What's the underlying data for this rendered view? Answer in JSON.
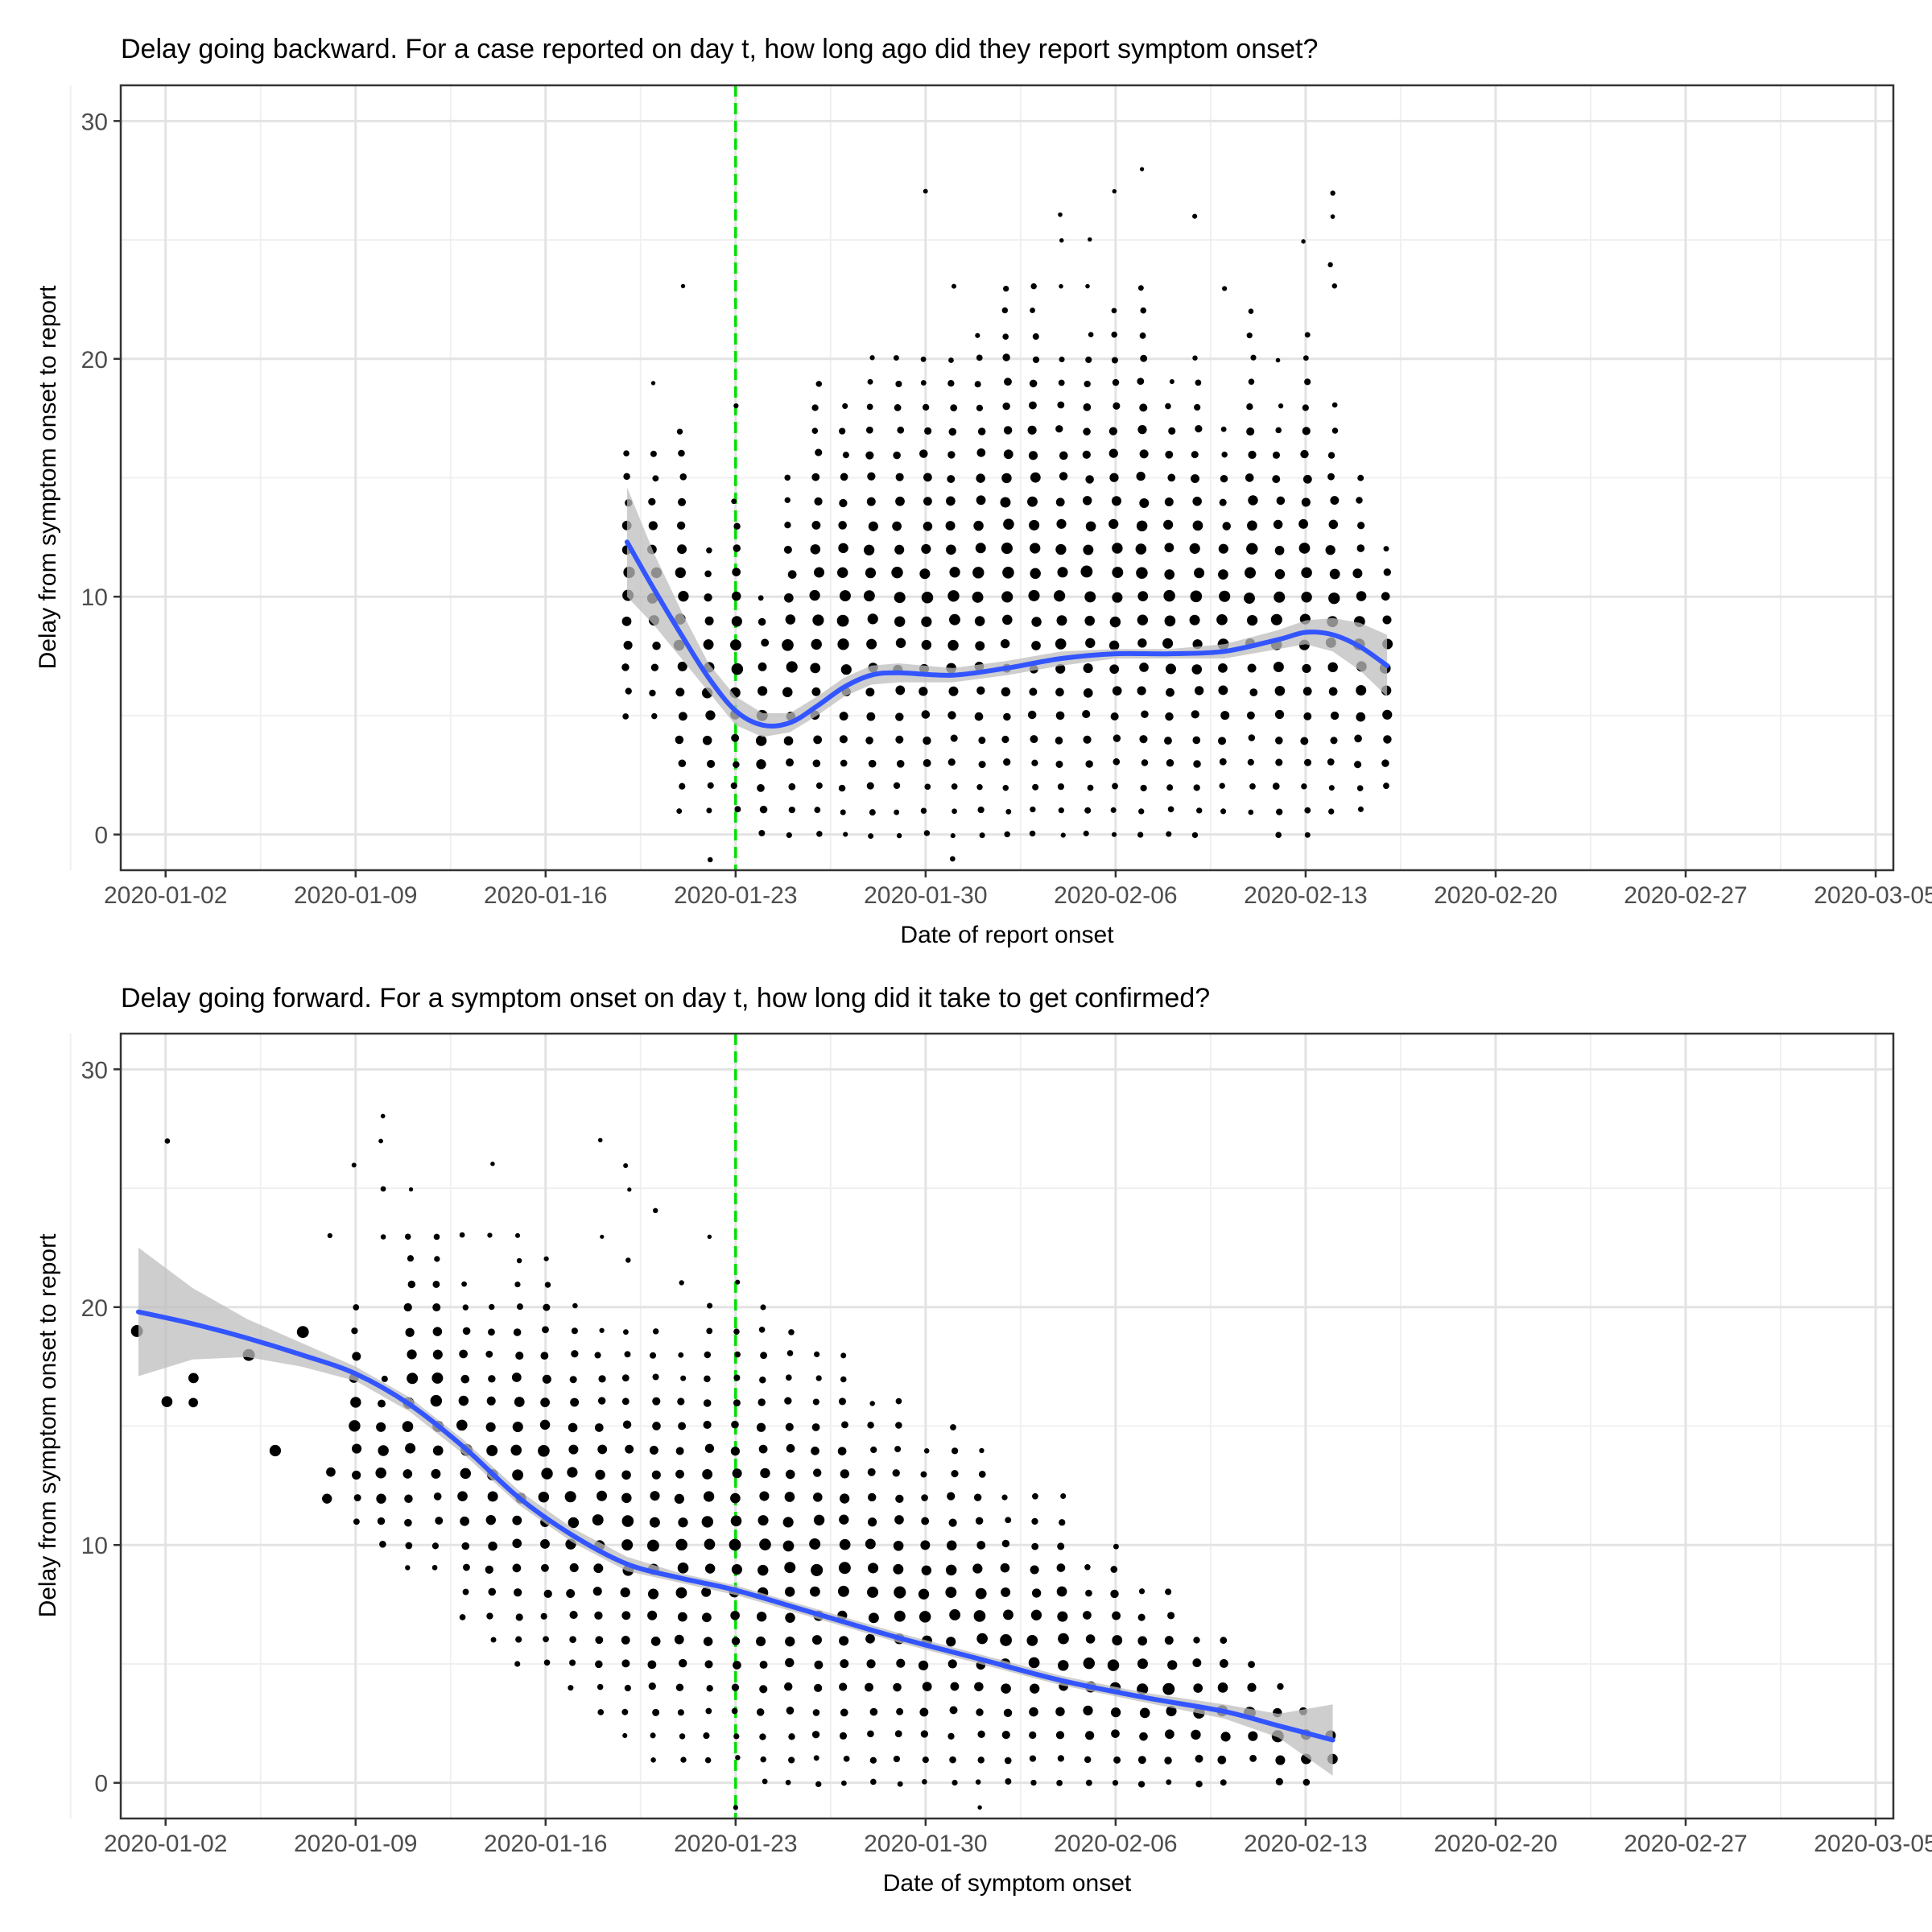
{
  "chart_data": [
    {
      "type": "scatter",
      "title": "Delay going backward. For a case reported on day t, how long ago did they report symptom onset?",
      "xlabel": "Date of report onset",
      "ylabel": "Delay from symptom onset to report",
      "x_axis_type": "date",
      "xlim": [
        "2020-01-01",
        "2020-03-05"
      ],
      "ylim": [
        -1.5,
        31.5
      ],
      "x_ticks": [
        "2020-01-02",
        "2020-01-09",
        "2020-01-16",
        "2020-01-23",
        "2020-01-30",
        "2020-02-06",
        "2020-02-13",
        "2020-02-20",
        "2020-02-27",
        "2020-03-05"
      ],
      "y_ticks": [
        0,
        10,
        20,
        30
      ],
      "grid": true,
      "reference_line": {
        "x": "2020-01-23",
        "color": "#00e000",
        "style": "dashed"
      },
      "points_description": "Jittered points per day, point size ~ case count",
      "point_columns": [
        {
          "x": "2020-01-19",
          "ymin": 5,
          "ymax": 16,
          "extra": []
        },
        {
          "x": "2020-01-20",
          "ymin": 5,
          "ymax": 16,
          "extra": [
            19
          ]
        },
        {
          "x": "2020-01-21",
          "ymin": 1,
          "ymax": 17,
          "extra": [
            23
          ]
        },
        {
          "x": "2020-01-22",
          "ymin": 1,
          "ymax": 12,
          "extra": [
            -1
          ]
        },
        {
          "x": "2020-01-23",
          "ymin": 1,
          "ymax": 14,
          "extra": [
            18
          ]
        },
        {
          "x": "2020-01-24",
          "ymin": 0,
          "ymax": 10,
          "extra": []
        },
        {
          "x": "2020-01-25",
          "ymin": 0,
          "ymax": 15,
          "extra": []
        },
        {
          "x": "2020-01-26",
          "ymin": 0,
          "ymax": 19,
          "extra": []
        },
        {
          "x": "2020-01-27",
          "ymin": 0,
          "ymax": 18,
          "extra": []
        },
        {
          "x": "2020-01-28",
          "ymin": 0,
          "ymax": 20,
          "extra": []
        },
        {
          "x": "2020-01-29",
          "ymin": 0,
          "ymax": 20,
          "extra": []
        },
        {
          "x": "2020-01-30",
          "ymin": 0,
          "ymax": 20,
          "extra": [
            27
          ]
        },
        {
          "x": "2020-01-31",
          "ymin": 0,
          "ymax": 20,
          "extra": [
            -1,
            23
          ]
        },
        {
          "x": "2020-02-01",
          "ymin": 0,
          "ymax": 21,
          "extra": []
        },
        {
          "x": "2020-02-02",
          "ymin": 0,
          "ymax": 23,
          "extra": []
        },
        {
          "x": "2020-02-03",
          "ymin": 0,
          "ymax": 23,
          "extra": []
        },
        {
          "x": "2020-02-04",
          "ymin": 0,
          "ymax": 20,
          "extra": [
            23,
            25,
            26
          ]
        },
        {
          "x": "2020-02-05",
          "ymin": 0,
          "ymax": 21,
          "extra": [
            23,
            25
          ]
        },
        {
          "x": "2020-02-06",
          "ymin": 0,
          "ymax": 22,
          "extra": [
            27
          ]
        },
        {
          "x": "2020-02-07",
          "ymin": 0,
          "ymax": 23,
          "extra": [
            28
          ]
        },
        {
          "x": "2020-02-08",
          "ymin": 0,
          "ymax": 19,
          "extra": []
        },
        {
          "x": "2020-02-09",
          "ymin": 0,
          "ymax": 20,
          "extra": [
            26
          ]
        },
        {
          "x": "2020-02-10",
          "ymin": 1,
          "ymax": 17,
          "extra": [
            23
          ]
        },
        {
          "x": "2020-02-11",
          "ymin": 1,
          "ymax": 21,
          "extra": [
            22
          ]
        },
        {
          "x": "2020-02-12",
          "ymin": 0,
          "ymax": 18,
          "extra": [
            20
          ]
        },
        {
          "x": "2020-02-13",
          "ymin": 0,
          "ymax": 21,
          "extra": [
            25
          ]
        },
        {
          "x": "2020-02-14",
          "ymin": 1,
          "ymax": 18,
          "extra": [
            23,
            24,
            26,
            27
          ]
        },
        {
          "x": "2020-02-15",
          "ymin": 1,
          "ymax": 15,
          "extra": []
        },
        {
          "x": "2020-02-16",
          "ymin": 2,
          "ymax": 12,
          "extra": []
        }
      ],
      "series": [
        {
          "name": "",
          "kind": "smooth",
          "x": [
            "2020-01-19",
            "2020-01-20",
            "2020-01-21",
            "2020-01-22",
            "2020-01-23",
            "2020-01-24",
            "2020-01-25",
            "2020-01-26",
            "2020-01-27",
            "2020-01-28",
            "2020-01-29",
            "2020-01-31",
            "2020-02-02",
            "2020-02-04",
            "2020-02-06",
            "2020-02-08",
            "2020-02-10",
            "2020-02-12",
            "2020-02-13",
            "2020-02-14",
            "2020-02-15",
            "2020-02-16"
          ],
          "y": [
            12.3,
            10.3,
            8.4,
            6.6,
            5.2,
            4.6,
            4.7,
            5.4,
            6.2,
            6.7,
            6.8,
            6.7,
            7.0,
            7.4,
            7.6,
            7.6,
            7.7,
            8.2,
            8.5,
            8.4,
            7.9,
            7.1
          ],
          "lower": [
            10.0,
            8.8,
            7.4,
            6.0,
            4.6,
            4.1,
            4.3,
            5.0,
            5.8,
            6.3,
            6.4,
            6.4,
            6.7,
            7.1,
            7.4,
            7.4,
            7.4,
            7.8,
            8.0,
            7.7,
            6.9,
            5.8
          ],
          "upper": [
            14.6,
            11.8,
            9.4,
            7.2,
            5.8,
            5.1,
            5.1,
            5.8,
            6.6,
            7.1,
            7.2,
            7.0,
            7.3,
            7.7,
            7.8,
            7.8,
            8.0,
            8.6,
            9.0,
            9.1,
            8.9,
            8.4
          ],
          "color": "#3355ff",
          "band_color": "#bdbdbd"
        }
      ]
    },
    {
      "type": "scatter",
      "title": "Delay going forward. For a symptom onset on day t, how long did it take to get confirmed?",
      "xlabel": "Date of symptom onset",
      "ylabel": "Delay from symptom onset to report",
      "x_axis_type": "date",
      "xlim": [
        "2020-01-01",
        "2020-03-05"
      ],
      "ylim": [
        -1.5,
        31.5
      ],
      "x_ticks": [
        "2020-01-02",
        "2020-01-09",
        "2020-01-16",
        "2020-01-23",
        "2020-01-30",
        "2020-02-06",
        "2020-02-13",
        "2020-02-20",
        "2020-02-27",
        "2020-03-05"
      ],
      "y_ticks": [
        0,
        10,
        20,
        30
      ],
      "grid": true,
      "reference_line": {
        "x": "2020-01-23",
        "color": "#00e000",
        "style": "dashed"
      },
      "points_description": "Jittered points per day, point size ~ case count",
      "point_columns": [
        {
          "x": "2020-01-01",
          "ymin": 19,
          "ymax": 19,
          "extra": []
        },
        {
          "x": "2020-01-02",
          "ymin": 16,
          "ymax": 16,
          "extra": [
            27
          ]
        },
        {
          "x": "2020-01-03",
          "ymin": 16,
          "ymax": 17,
          "extra": []
        },
        {
          "x": "2020-01-05",
          "ymin": 18,
          "ymax": 18,
          "extra": []
        },
        {
          "x": "2020-01-06",
          "ymin": 14,
          "ymax": 14,
          "extra": []
        },
        {
          "x": "2020-01-07",
          "ymin": 19,
          "ymax": 19,
          "extra": []
        },
        {
          "x": "2020-01-08",
          "ymin": 12,
          "ymax": 13,
          "extra": [
            23
          ]
        },
        {
          "x": "2020-01-09",
          "ymin": 11,
          "ymax": 20,
          "extra": [
            26
          ]
        },
        {
          "x": "2020-01-10",
          "ymin": 10,
          "ymax": 17,
          "extra": [
            23,
            25,
            27,
            28
          ]
        },
        {
          "x": "2020-01-11",
          "ymin": 9,
          "ymax": 23,
          "extra": [
            25
          ]
        },
        {
          "x": "2020-01-12",
          "ymin": 9,
          "ymax": 23,
          "extra": []
        },
        {
          "x": "2020-01-13",
          "ymin": 7,
          "ymax": 21,
          "extra": [
            23
          ]
        },
        {
          "x": "2020-01-14",
          "ymin": 6,
          "ymax": 20,
          "extra": [
            23,
            26
          ]
        },
        {
          "x": "2020-01-15",
          "ymin": 5,
          "ymax": 22,
          "extra": [
            23
          ]
        },
        {
          "x": "2020-01-16",
          "ymin": 5,
          "ymax": 22,
          "extra": []
        },
        {
          "x": "2020-01-17",
          "ymin": 4,
          "ymax": 20,
          "extra": []
        },
        {
          "x": "2020-01-18",
          "ymin": 3,
          "ymax": 19,
          "extra": [
            23,
            27
          ]
        },
        {
          "x": "2020-01-19",
          "ymin": 2,
          "ymax": 19,
          "extra": [
            22,
            25,
            26
          ]
        },
        {
          "x": "2020-01-20",
          "ymin": 1,
          "ymax": 19,
          "extra": [
            24
          ]
        },
        {
          "x": "2020-01-21",
          "ymin": 1,
          "ymax": 18,
          "extra": [
            21
          ]
        },
        {
          "x": "2020-01-22",
          "ymin": 1,
          "ymax": 20,
          "extra": [
            23
          ]
        },
        {
          "x": "2020-01-23",
          "ymin": 1,
          "ymax": 19,
          "extra": [
            -1,
            21
          ]
        },
        {
          "x": "2020-01-24",
          "ymin": 0,
          "ymax": 20,
          "extra": []
        },
        {
          "x": "2020-01-25",
          "ymin": 0,
          "ymax": 19,
          "extra": []
        },
        {
          "x": "2020-01-26",
          "ymin": 0,
          "ymax": 18,
          "extra": []
        },
        {
          "x": "2020-01-27",
          "ymin": 0,
          "ymax": 18,
          "extra": []
        },
        {
          "x": "2020-01-28",
          "ymin": 0,
          "ymax": 16,
          "extra": []
        },
        {
          "x": "2020-01-29",
          "ymin": 0,
          "ymax": 16,
          "extra": []
        },
        {
          "x": "2020-01-30",
          "ymin": 0,
          "ymax": 14,
          "extra": []
        },
        {
          "x": "2020-01-31",
          "ymin": 0,
          "ymax": 15,
          "extra": []
        },
        {
          "x": "2020-02-01",
          "ymin": 0,
          "ymax": 14,
          "extra": [
            -1
          ]
        },
        {
          "x": "2020-02-02",
          "ymin": 0,
          "ymax": 12,
          "extra": []
        },
        {
          "x": "2020-02-03",
          "ymin": 0,
          "ymax": 12,
          "extra": []
        },
        {
          "x": "2020-02-04",
          "ymin": 0,
          "ymax": 12,
          "extra": []
        },
        {
          "x": "2020-02-05",
          "ymin": 0,
          "ymax": 9,
          "extra": []
        },
        {
          "x": "2020-02-06",
          "ymin": 0,
          "ymax": 10,
          "extra": []
        },
        {
          "x": "2020-02-07",
          "ymin": 0,
          "ymax": 8,
          "extra": []
        },
        {
          "x": "2020-02-08",
          "ymin": 0,
          "ymax": 8,
          "extra": []
        },
        {
          "x": "2020-02-09",
          "ymin": 0,
          "ymax": 6,
          "extra": []
        },
        {
          "x": "2020-02-10",
          "ymin": 0,
          "ymax": 6,
          "extra": []
        },
        {
          "x": "2020-02-11",
          "ymin": 1,
          "ymax": 5,
          "extra": []
        },
        {
          "x": "2020-02-12",
          "ymin": 0,
          "ymax": 4,
          "extra": []
        },
        {
          "x": "2020-02-13",
          "ymin": 0,
          "ymax": 3,
          "extra": []
        },
        {
          "x": "2020-02-14",
          "ymin": 1,
          "ymax": 2,
          "extra": []
        }
      ],
      "series": [
        {
          "name": "",
          "kind": "smooth",
          "x": [
            "2020-01-01",
            "2020-01-03",
            "2020-01-05",
            "2020-01-07",
            "2020-01-09",
            "2020-01-11",
            "2020-01-13",
            "2020-01-15",
            "2020-01-17",
            "2020-01-19",
            "2020-01-21",
            "2020-01-23",
            "2020-01-26",
            "2020-01-29",
            "2020-02-01",
            "2020-02-04",
            "2020-02-07",
            "2020-02-10",
            "2020-02-12",
            "2020-02-14"
          ],
          "y": [
            19.8,
            19.3,
            18.7,
            18.0,
            17.2,
            15.9,
            14.1,
            12.0,
            10.4,
            9.2,
            8.6,
            8.1,
            7.1,
            6.1,
            5.2,
            4.3,
            3.6,
            3.0,
            2.4,
            1.8
          ],
          "lower": [
            17.1,
            17.8,
            17.9,
            17.5,
            16.9,
            15.6,
            13.8,
            11.7,
            10.1,
            8.9,
            8.4,
            7.9,
            6.9,
            5.9,
            5.0,
            4.1,
            3.4,
            2.7,
            1.9,
            0.3
          ],
          "upper": [
            22.5,
            20.8,
            19.5,
            18.5,
            17.5,
            16.2,
            14.4,
            12.3,
            10.7,
            9.5,
            8.8,
            8.3,
            7.3,
            6.3,
            5.4,
            4.5,
            3.8,
            3.3,
            2.9,
            3.3
          ],
          "color": "#3355ff",
          "band_color": "#bdbdbd"
        }
      ]
    }
  ]
}
